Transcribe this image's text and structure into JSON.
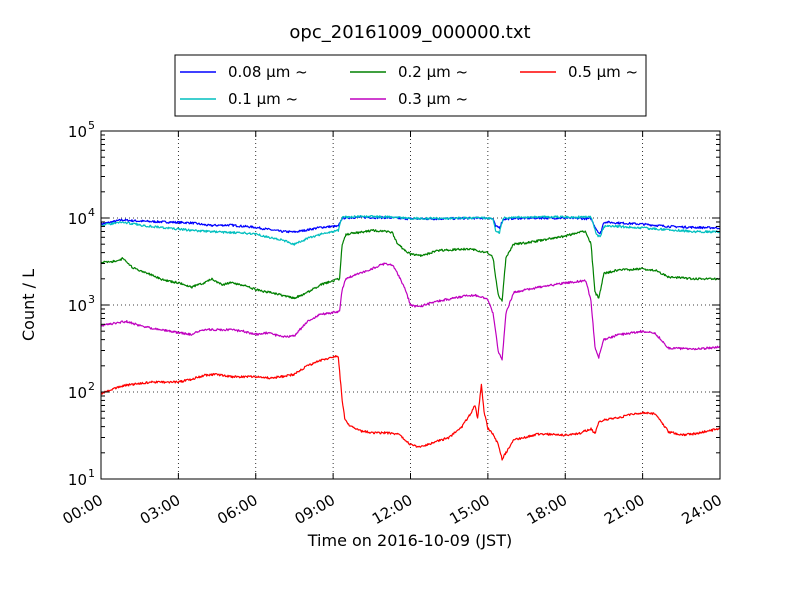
{
  "chart_data": {
    "type": "line",
    "title": "opc_20161009_000000.txt",
    "xlabel": "Time on 2016-10-09 (JST)",
    "ylabel": "Count / L",
    "yscale": "log",
    "ylim": [
      10,
      100000
    ],
    "xlim": [
      0,
      24
    ],
    "x_tick_values": [
      0,
      3,
      6,
      9,
      12,
      15,
      18,
      21,
      24
    ],
    "x_tick_labels": [
      "00:00",
      "03:00",
      "06:00",
      "09:00",
      "12:00",
      "15:00",
      "18:00",
      "21:00",
      "24:00"
    ],
    "y_ticks": [
      {
        "value": 10,
        "base": "10",
        "exp": "1"
      },
      {
        "value": 100,
        "base": "10",
        "exp": "2"
      },
      {
        "value": 1000,
        "base": "10",
        "exp": "3"
      },
      {
        "value": 10000,
        "base": "10",
        "exp": "4"
      },
      {
        "value": 100000,
        "base": "10",
        "exp": "5"
      }
    ],
    "grid": true,
    "legend": {
      "position": "top-center",
      "columns": 3
    },
    "series": [
      {
        "name": "0.08 μm ~",
        "color": "#0000ff",
        "points": [
          [
            0,
            8500
          ],
          [
            0.8,
            9500
          ],
          [
            1.5,
            9200
          ],
          [
            2.5,
            9000
          ],
          [
            3.5,
            8800
          ],
          [
            4.2,
            8200
          ],
          [
            5,
            8300
          ],
          [
            6,
            7800
          ],
          [
            7,
            7000
          ],
          [
            7.5,
            6900
          ],
          [
            8,
            7300
          ],
          [
            8.5,
            7800
          ],
          [
            9,
            8000
          ],
          [
            9.2,
            8000
          ],
          [
            9.35,
            10000
          ],
          [
            10,
            10200
          ],
          [
            11,
            10100
          ],
          [
            12,
            9800
          ],
          [
            13,
            9800
          ],
          [
            14,
            9900
          ],
          [
            15,
            10000
          ],
          [
            15.2,
            9800
          ],
          [
            15.3,
            8000
          ],
          [
            15.45,
            7800
          ],
          [
            15.6,
            9700
          ],
          [
            16,
            9900
          ],
          [
            17,
            10000
          ],
          [
            18,
            10000
          ],
          [
            19,
            9800
          ],
          [
            19.2,
            7500
          ],
          [
            19.35,
            6500
          ],
          [
            19.5,
            9000
          ],
          [
            20,
            8800
          ],
          [
            21,
            8500
          ],
          [
            22,
            8000
          ],
          [
            23,
            7800
          ],
          [
            24,
            7700
          ]
        ]
      },
      {
        "name": "0.1 μm ~",
        "color": "#00bfbf",
        "points": [
          [
            0,
            8200
          ],
          [
            0.8,
            9000
          ],
          [
            1.5,
            8300
          ],
          [
            2.5,
            7700
          ],
          [
            3.5,
            7200
          ],
          [
            4.2,
            7000
          ],
          [
            5,
            6800
          ],
          [
            6,
            6600
          ],
          [
            6.5,
            6000
          ],
          [
            7,
            5600
          ],
          [
            7.5,
            5000
          ],
          [
            8,
            5800
          ],
          [
            8.5,
            6500
          ],
          [
            9,
            7000
          ],
          [
            9.2,
            7200
          ],
          [
            9.35,
            10300
          ],
          [
            10,
            10400
          ],
          [
            11,
            10300
          ],
          [
            12,
            9900
          ],
          [
            13,
            9900
          ],
          [
            14,
            10000
          ],
          [
            15,
            10000
          ],
          [
            15.2,
            9800
          ],
          [
            15.3,
            7200
          ],
          [
            15.45,
            6800
          ],
          [
            15.6,
            10000
          ],
          [
            16,
            10200
          ],
          [
            17,
            10300
          ],
          [
            18,
            10300
          ],
          [
            19,
            10200
          ],
          [
            19.2,
            6500
          ],
          [
            19.35,
            6000
          ],
          [
            19.5,
            8000
          ],
          [
            20,
            8000
          ],
          [
            21,
            7700
          ],
          [
            22,
            7300
          ],
          [
            23,
            7000
          ],
          [
            24,
            6900
          ]
        ]
      },
      {
        "name": "0.2 μm ~",
        "color": "#008000",
        "points": [
          [
            0,
            3100
          ],
          [
            0.7,
            3200
          ],
          [
            0.85,
            3500
          ],
          [
            1.2,
            2700
          ],
          [
            1.6,
            2400
          ],
          [
            2,
            2200
          ],
          [
            2.5,
            1900
          ],
          [
            3,
            1800
          ],
          [
            3.5,
            1600
          ],
          [
            4,
            1800
          ],
          [
            4.3,
            2000
          ],
          [
            4.7,
            1700
          ],
          [
            5,
            1800
          ],
          [
            5.5,
            1700
          ],
          [
            6,
            1500
          ],
          [
            6.5,
            1400
          ],
          [
            7,
            1300
          ],
          [
            7.5,
            1200
          ],
          [
            8,
            1400
          ],
          [
            8.5,
            1700
          ],
          [
            9,
            1900
          ],
          [
            9.25,
            2000
          ],
          [
            9.35,
            5000
          ],
          [
            9.5,
            6500
          ],
          [
            10,
            6800
          ],
          [
            10.5,
            7200
          ],
          [
            11,
            7000
          ],
          [
            11.3,
            6800
          ],
          [
            11.5,
            5000
          ],
          [
            12,
            3800
          ],
          [
            12.5,
            3700
          ],
          [
            13,
            4200
          ],
          [
            14,
            4400
          ],
          [
            14.5,
            4300
          ],
          [
            15,
            4000
          ],
          [
            15.2,
            3500
          ],
          [
            15.4,
            1300
          ],
          [
            15.55,
            1100
          ],
          [
            15.7,
            3500
          ],
          [
            16,
            5000
          ],
          [
            16.5,
            5200
          ],
          [
            17,
            5500
          ],
          [
            18,
            6200
          ],
          [
            18.5,
            6800
          ],
          [
            18.8,
            7000
          ],
          [
            19,
            5000
          ],
          [
            19.15,
            1400
          ],
          [
            19.3,
            1200
          ],
          [
            19.5,
            2300
          ],
          [
            20,
            2500
          ],
          [
            21,
            2600
          ],
          [
            21.5,
            2500
          ],
          [
            22,
            2100
          ],
          [
            23,
            2000
          ],
          [
            24,
            2000
          ]
        ]
      },
      {
        "name": "0.3 μm ~",
        "color": "#bf00bf",
        "points": [
          [
            0,
            580
          ],
          [
            0.6,
            620
          ],
          [
            1,
            650
          ],
          [
            1.5,
            580
          ],
          [
            2,
            540
          ],
          [
            3,
            480
          ],
          [
            3.5,
            460
          ],
          [
            4,
            520
          ],
          [
            5,
            520
          ],
          [
            5.5,
            500
          ],
          [
            6,
            460
          ],
          [
            6.5,
            480
          ],
          [
            7,
            430
          ],
          [
            7.5,
            440
          ],
          [
            8,
            650
          ],
          [
            8.5,
            780
          ],
          [
            9,
            820
          ],
          [
            9.25,
            850
          ],
          [
            9.35,
            1500
          ],
          [
            9.5,
            2000
          ],
          [
            10,
            2300
          ],
          [
            10.5,
            2600
          ],
          [
            11,
            3000
          ],
          [
            11.3,
            2900
          ],
          [
            11.5,
            2300
          ],
          [
            11.8,
            1500
          ],
          [
            12,
            1000
          ],
          [
            12.3,
            950
          ],
          [
            13,
            1100
          ],
          [
            14,
            1250
          ],
          [
            14.5,
            1300
          ],
          [
            15,
            1150
          ],
          [
            15.2,
            800
          ],
          [
            15.4,
            300
          ],
          [
            15.55,
            230
          ],
          [
            15.7,
            800
          ],
          [
            16,
            1400
          ],
          [
            16.5,
            1500
          ],
          [
            17,
            1600
          ],
          [
            18,
            1800
          ],
          [
            18.8,
            1900
          ],
          [
            19,
            1100
          ],
          [
            19.15,
            330
          ],
          [
            19.3,
            250
          ],
          [
            19.5,
            400
          ],
          [
            20,
            450
          ],
          [
            21,
            500
          ],
          [
            21.5,
            470
          ],
          [
            22,
            320
          ],
          [
            23,
            310
          ],
          [
            24,
            330
          ]
        ]
      },
      {
        "name": "0.5 μm ~",
        "color": "#ff0000",
        "points": [
          [
            0,
            95
          ],
          [
            0.5,
            110
          ],
          [
            1,
            120
          ],
          [
            1.5,
            125
          ],
          [
            2,
            130
          ],
          [
            3,
            130
          ],
          [
            3.5,
            140
          ],
          [
            4,
            155
          ],
          [
            4.5,
            160
          ],
          [
            5,
            150
          ],
          [
            5.5,
            150
          ],
          [
            6,
            150
          ],
          [
            6.5,
            145
          ],
          [
            7,
            150
          ],
          [
            7.5,
            160
          ],
          [
            8,
            200
          ],
          [
            8.5,
            230
          ],
          [
            9,
            250
          ],
          [
            9.2,
            260
          ],
          [
            9.35,
            80
          ],
          [
            9.45,
            50
          ],
          [
            9.6,
            42
          ],
          [
            10,
            36
          ],
          [
            10.5,
            34
          ],
          [
            11,
            34
          ],
          [
            11.5,
            33
          ],
          [
            12,
            25
          ],
          [
            12.3,
            23
          ],
          [
            13,
            27
          ],
          [
            13.5,
            30
          ],
          [
            14,
            40
          ],
          [
            14.3,
            55
          ],
          [
            14.5,
            70
          ],
          [
            14.6,
            50
          ],
          [
            14.75,
            120
          ],
          [
            14.85,
            60
          ],
          [
            15,
            38
          ],
          [
            15.2,
            33
          ],
          [
            15.4,
            25
          ],
          [
            15.55,
            17
          ],
          [
            15.7,
            20
          ],
          [
            16,
            28
          ],
          [
            17,
            33
          ],
          [
            18,
            32
          ],
          [
            18.5,
            33
          ],
          [
            19,
            38
          ],
          [
            19.15,
            33
          ],
          [
            19.3,
            45
          ],
          [
            19.5,
            48
          ],
          [
            20,
            50
          ],
          [
            20.5,
            55
          ],
          [
            21,
            58
          ],
          [
            21.5,
            56
          ],
          [
            22,
            35
          ],
          [
            22.5,
            32
          ],
          [
            23,
            33
          ],
          [
            24,
            38
          ]
        ]
      }
    ]
  }
}
